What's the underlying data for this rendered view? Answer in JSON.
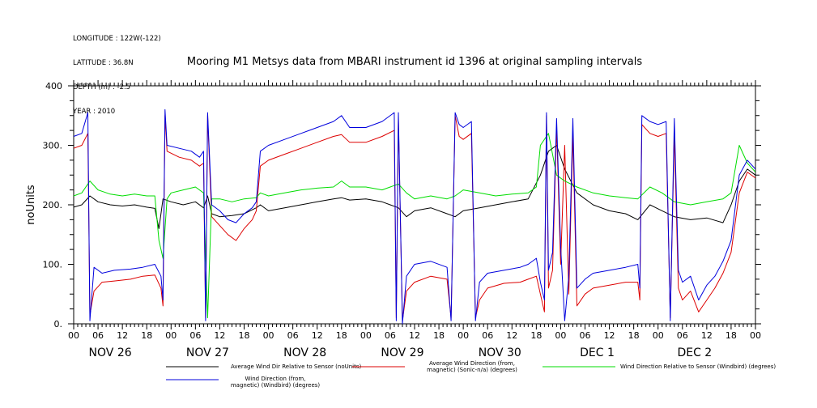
{
  "header": {
    "longitude": "LONGITUDE : 122W(-122)",
    "latitude": "LATITUDE : 36.8N",
    "depth": "DEPTH (m) : -2.5",
    "year": "YEAR : 2010"
  },
  "chart_data": {
    "type": "line",
    "title": "Mooring M1 Metsys data from MBARI instrument id 1396 at original sampling intervals",
    "ylabel": "noUnits",
    "ylim": [
      0,
      400
    ],
    "yticks": [
      0,
      100,
      200,
      300,
      400
    ],
    "yticklabels": [
      "0.",
      "100.",
      "200.",
      "300.",
      "400"
    ],
    "xlim": [
      0,
      168
    ],
    "hour_ticks": [
      "00",
      "06",
      "12",
      "18",
      "00",
      "06",
      "12",
      "18",
      "00",
      "06",
      "12",
      "18",
      "00",
      "06",
      "12",
      "18",
      "00",
      "06",
      "12",
      "18",
      "00",
      "06",
      "12",
      "18",
      "00",
      "06",
      "12",
      "18",
      "00"
    ],
    "day_labels": [
      "NOV 26",
      "NOV 27",
      "NOV 28",
      "NOV 29",
      "NOV 30",
      "DEC  1",
      "DEC  2"
    ],
    "grid": false,
    "legend_position": "bottom",
    "series": [
      {
        "name": "Average Wind Dir Relative to Sensor (noUnits)",
        "color": "#000000",
        "points": [
          [
            0,
            196
          ],
          [
            2,
            200
          ],
          [
            4,
            215
          ],
          [
            6,
            205
          ],
          [
            9,
            200
          ],
          [
            12,
            198
          ],
          [
            15,
            200
          ],
          [
            18,
            196
          ],
          [
            20,
            194
          ],
          [
            21,
            160
          ],
          [
            22,
            210
          ],
          [
            24,
            205
          ],
          [
            27,
            200
          ],
          [
            30,
            205
          ],
          [
            32,
            195
          ],
          [
            33,
            215
          ],
          [
            34,
            185
          ],
          [
            36,
            180
          ],
          [
            39,
            182
          ],
          [
            42,
            185
          ],
          [
            45,
            195
          ],
          [
            46,
            200
          ],
          [
            48,
            190
          ],
          [
            52,
            195
          ],
          [
            56,
            200
          ],
          [
            60,
            205
          ],
          [
            64,
            210
          ],
          [
            66,
            212
          ],
          [
            68,
            208
          ],
          [
            72,
            210
          ],
          [
            76,
            205
          ],
          [
            78,
            200
          ],
          [
            80,
            195
          ],
          [
            82,
            180
          ],
          [
            84,
            190
          ],
          [
            88,
            195
          ],
          [
            92,
            185
          ],
          [
            94,
            180
          ],
          [
            96,
            190
          ],
          [
            100,
            195
          ],
          [
            104,
            200
          ],
          [
            108,
            205
          ],
          [
            112,
            210
          ],
          [
            115,
            250
          ],
          [
            117,
            290
          ],
          [
            119,
            300
          ],
          [
            121,
            260
          ],
          [
            124,
            220
          ],
          [
            128,
            200
          ],
          [
            132,
            190
          ],
          [
            136,
            185
          ],
          [
            139,
            175
          ],
          [
            142,
            200
          ],
          [
            145,
            190
          ],
          [
            148,
            180
          ],
          [
            152,
            175
          ],
          [
            156,
            178
          ],
          [
            160,
            170
          ],
          [
            162,
            200
          ],
          [
            164,
            240
          ],
          [
            166,
            260
          ],
          [
            168,
            250
          ]
        ]
      },
      {
        "name": "Average Wind Direction (from, magnetic) (Sonic-n/a) (degrees)",
        "color": "#dd0000",
        "points": [
          [
            0,
            295
          ],
          [
            2,
            300
          ],
          [
            3.5,
            320
          ],
          [
            4,
            15
          ],
          [
            5,
            55
          ],
          [
            7,
            70
          ],
          [
            10,
            72
          ],
          [
            14,
            75
          ],
          [
            17,
            80
          ],
          [
            20,
            82
          ],
          [
            21.5,
            60
          ],
          [
            22,
            30
          ],
          [
            22.5,
            350
          ],
          [
            23,
            290
          ],
          [
            26,
            280
          ],
          [
            29,
            275
          ],
          [
            31,
            265
          ],
          [
            32,
            270
          ],
          [
            32.5,
            10
          ],
          [
            33,
            350
          ],
          [
            34,
            180
          ],
          [
            36,
            165
          ],
          [
            38,
            150
          ],
          [
            40,
            140
          ],
          [
            42,
            160
          ],
          [
            44,
            175
          ],
          [
            45,
            190
          ],
          [
            46,
            265
          ],
          [
            48,
            275
          ],
          [
            52,
            285
          ],
          [
            56,
            295
          ],
          [
            60,
            305
          ],
          [
            64,
            315
          ],
          [
            66,
            318
          ],
          [
            68,
            305
          ],
          [
            72,
            305
          ],
          [
            76,
            315
          ],
          [
            79,
            325
          ],
          [
            79.5,
            10
          ],
          [
            80,
            345
          ],
          [
            81,
            5
          ],
          [
            82,
            55
          ],
          [
            84,
            70
          ],
          [
            88,
            80
          ],
          [
            92,
            75
          ],
          [
            93,
            10
          ],
          [
            94,
            350
          ],
          [
            95,
            315
          ],
          [
            96,
            310
          ],
          [
            98,
            320
          ],
          [
            99,
            10
          ],
          [
            100,
            40
          ],
          [
            102,
            60
          ],
          [
            106,
            68
          ],
          [
            110,
            70
          ],
          [
            112,
            75
          ],
          [
            114,
            80
          ],
          [
            115,
            50
          ],
          [
            116,
            20
          ],
          [
            116.5,
            350
          ],
          [
            117,
            60
          ],
          [
            118,
            90
          ],
          [
            119,
            330
          ],
          [
            120,
            100
          ],
          [
            121,
            300
          ],
          [
            122,
            50
          ],
          [
            123,
            320
          ],
          [
            124,
            30
          ],
          [
            126,
            50
          ],
          [
            128,
            60
          ],
          [
            132,
            65
          ],
          [
            136,
            70
          ],
          [
            139,
            70
          ],
          [
            139.5,
            40
          ],
          [
            140,
            335
          ],
          [
            142,
            320
          ],
          [
            144,
            315
          ],
          [
            146,
            320
          ],
          [
            147,
            10
          ],
          [
            148,
            320
          ],
          [
            149,
            60
          ],
          [
            150,
            40
          ],
          [
            152,
            55
          ],
          [
            154,
            20
          ],
          [
            156,
            40
          ],
          [
            158,
            60
          ],
          [
            160,
            85
          ],
          [
            162,
            120
          ],
          [
            164,
            220
          ],
          [
            166,
            255
          ],
          [
            168,
            245
          ]
        ]
      },
      {
        "name": "Wind Direction Relative to Sensor (Windbird) (degrees)",
        "color": "#00dd00",
        "points": [
          [
            0,
            215
          ],
          [
            2,
            220
          ],
          [
            4,
            240
          ],
          [
            6,
            225
          ],
          [
            9,
            218
          ],
          [
            12,
            215
          ],
          [
            15,
            218
          ],
          [
            18,
            215
          ],
          [
            20,
            215
          ],
          [
            21,
            140
          ],
          [
            22,
            110
          ],
          [
            23,
            210
          ],
          [
            24,
            220
          ],
          [
            27,
            225
          ],
          [
            30,
            230
          ],
          [
            32,
            220
          ],
          [
            33,
            10
          ],
          [
            34,
            210
          ],
          [
            36,
            210
          ],
          [
            39,
            205
          ],
          [
            42,
            210
          ],
          [
            45,
            212
          ],
          [
            46,
            220
          ],
          [
            48,
            215
          ],
          [
            52,
            220
          ],
          [
            56,
            225
          ],
          [
            60,
            228
          ],
          [
            64,
            230
          ],
          [
            66,
            240
          ],
          [
            68,
            230
          ],
          [
            72,
            230
          ],
          [
            76,
            225
          ],
          [
            78,
            230
          ],
          [
            80,
            235
          ],
          [
            82,
            220
          ],
          [
            84,
            210
          ],
          [
            88,
            215
          ],
          [
            92,
            210
          ],
          [
            94,
            215
          ],
          [
            96,
            225
          ],
          [
            100,
            220
          ],
          [
            104,
            215
          ],
          [
            108,
            218
          ],
          [
            112,
            220
          ],
          [
            114,
            230
          ],
          [
            115,
            300
          ],
          [
            117,
            320
          ],
          [
            119,
            250
          ],
          [
            121,
            240
          ],
          [
            124,
            230
          ],
          [
            128,
            220
          ],
          [
            132,
            215
          ],
          [
            136,
            212
          ],
          [
            139,
            210
          ],
          [
            142,
            230
          ],
          [
            145,
            220
          ],
          [
            148,
            205
          ],
          [
            152,
            200
          ],
          [
            156,
            205
          ],
          [
            160,
            210
          ],
          [
            162,
            220
          ],
          [
            164,
            300
          ],
          [
            166,
            270
          ],
          [
            168,
            255
          ]
        ]
      },
      {
        "name": "Wind Direction (from, magnetic) (Windbird) (degrees)",
        "color": "#0000dd",
        "points": [
          [
            0,
            315
          ],
          [
            2,
            320
          ],
          [
            3.5,
            355
          ],
          [
            4,
            5
          ],
          [
            5,
            95
          ],
          [
            7,
            85
          ],
          [
            10,
            90
          ],
          [
            14,
            92
          ],
          [
            17,
            95
          ],
          [
            20,
            100
          ],
          [
            21.5,
            80
          ],
          [
            22,
            40
          ],
          [
            22.5,
            360
          ],
          [
            23,
            300
          ],
          [
            26,
            295
          ],
          [
            29,
            290
          ],
          [
            31,
            280
          ],
          [
            32,
            290
          ],
          [
            32.5,
            5
          ],
          [
            33,
            355
          ],
          [
            34,
            200
          ],
          [
            36,
            190
          ],
          [
            38,
            175
          ],
          [
            40,
            170
          ],
          [
            42,
            185
          ],
          [
            44,
            195
          ],
          [
            45,
            205
          ],
          [
            46,
            290
          ],
          [
            48,
            300
          ],
          [
            52,
            310
          ],
          [
            56,
            320
          ],
          [
            60,
            330
          ],
          [
            64,
            340
          ],
          [
            66,
            350
          ],
          [
            68,
            330
          ],
          [
            72,
            330
          ],
          [
            76,
            340
          ],
          [
            79,
            355
          ],
          [
            79.5,
            5
          ],
          [
            80,
            355
          ],
          [
            81,
            0
          ],
          [
            82,
            80
          ],
          [
            84,
            100
          ],
          [
            88,
            105
          ],
          [
            92,
            95
          ],
          [
            93,
            5
          ],
          [
            94,
            355
          ],
          [
            95,
            335
          ],
          [
            96,
            330
          ],
          [
            98,
            340
          ],
          [
            99,
            5
          ],
          [
            100,
            70
          ],
          [
            102,
            85
          ],
          [
            106,
            90
          ],
          [
            110,
            95
          ],
          [
            112,
            100
          ],
          [
            114,
            110
          ],
          [
            115,
            70
          ],
          [
            116,
            40
          ],
          [
            116.5,
            355
          ],
          [
            117,
            90
          ],
          [
            118,
            120
          ],
          [
            119,
            345
          ],
          [
            120,
            130
          ],
          [
            121,
            5
          ],
          [
            122,
            80
          ],
          [
            123,
            345
          ],
          [
            124,
            60
          ],
          [
            126,
            75
          ],
          [
            128,
            85
          ],
          [
            132,
            90
          ],
          [
            136,
            95
          ],
          [
            139,
            100
          ],
          [
            139.5,
            60
          ],
          [
            140,
            350
          ],
          [
            142,
            340
          ],
          [
            144,
            335
          ],
          [
            146,
            340
          ],
          [
            147,
            5
          ],
          [
            148,
            345
          ],
          [
            149,
            90
          ],
          [
            150,
            70
          ],
          [
            152,
            80
          ],
          [
            154,
            40
          ],
          [
            156,
            65
          ],
          [
            158,
            80
          ],
          [
            160,
            105
          ],
          [
            162,
            140
          ],
          [
            164,
            250
          ],
          [
            166,
            275
          ],
          [
            168,
            260
          ]
        ]
      }
    ]
  }
}
